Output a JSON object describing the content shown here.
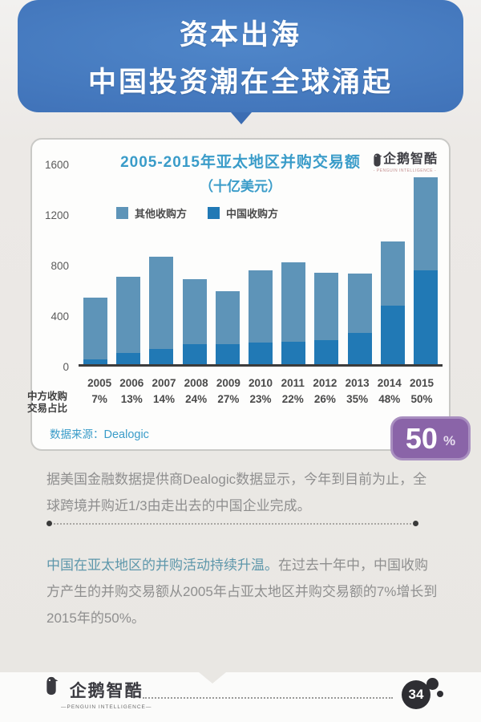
{
  "header": {
    "title_line1": "资本出海",
    "title_line2": "中国投资潮在全球涌起"
  },
  "chart": {
    "title_line1": "2005-2015年亚太地区并购交易额",
    "title_line2": "（十亿美元）",
    "logo_text": "企鹅智酷",
    "logo_subtext": "- PENGUIN INTELLIGENCE -",
    "legend_other": "其他收购方",
    "legend_china": "中国收购方",
    "row_label_line1": "中方收购",
    "row_label_line2": "交易占比",
    "source_label": "数据来源：",
    "source_value": "Dealogic"
  },
  "chart_data": {
    "type": "bar",
    "stacked": true,
    "title": "2005-2015年亚太地区并购交易额（十亿美元）",
    "ylabel": "十亿美元",
    "ylim": [
      0,
      1600
    ],
    "yticks": [
      0,
      400,
      800,
      1200,
      1600
    ],
    "grid": false,
    "legend_position": "top-left",
    "categories": [
      "2005",
      "2006",
      "2007",
      "2008",
      "2009",
      "2010",
      "2011",
      "2012",
      "2013",
      "2014",
      "2015"
    ],
    "series": [
      {
        "name": "中国收购方",
        "color": "#2179b5",
        "values": [
          37,
          90,
          119,
          161,
          157,
          171,
          177,
          189,
          250,
          466,
          740
        ]
      },
      {
        "name": "其他收购方",
        "color": "#5e94b8",
        "values": [
          493,
          600,
          731,
          509,
          423,
          574,
          628,
          536,
          465,
          504,
          740
        ]
      }
    ],
    "totals": [
      530,
      690,
      850,
      670,
      580,
      745,
      805,
      725,
      715,
      970,
      1480
    ],
    "china_share_pct": [
      "7%",
      "13%",
      "14%",
      "24%",
      "27%",
      "23%",
      "22%",
      "26%",
      "35%",
      "48%",
      "50%"
    ]
  },
  "badge": {
    "value": "50",
    "unit": "%"
  },
  "body_text": {
    "paragraph1": "据美国金融数据提供商Dealogic数据显示，今年到目前为止，全球跨境并购近1/3由走出去的中国企业完成。",
    "paragraph2_highlight": "中国在亚太地区的并购活动持续升温。",
    "paragraph2_rest": "在过去十年中，中国收购方产生的并购交易额从2005年占亚太地区并购交易额的7%增长到2015年的50%。"
  },
  "footer": {
    "logo_text": "企鹅智酷",
    "logo_subtext": "—PENGUIN INTELLIGENCE—",
    "page_number": "34"
  },
  "colors": {
    "banner_blue": "#4174ba",
    "title_teal": "#3a9cc9",
    "bar_other": "#5e94b8",
    "bar_china": "#2179b5",
    "badge_purple": "#8a64a8",
    "highlight_teal": "#5e97ab",
    "body_gray": "#8f8f8f"
  }
}
